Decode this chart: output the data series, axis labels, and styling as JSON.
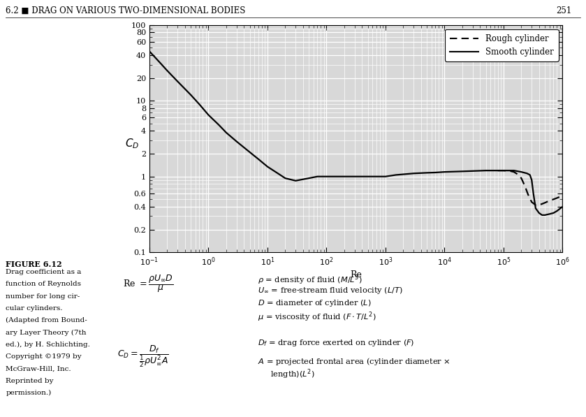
{
  "title_header": "6.2 ■ DRAG ON VARIOUS TWO-DIMENSIONAL BODIES",
  "page_number": "251",
  "ylabel": "$C_D$",
  "xlabel": "Re",
  "xlim": [
    0.1,
    1000000.0
  ],
  "ylim": [
    0.1,
    100
  ],
  "figure_label": "FIGURE 6.12",
  "figure_caption_lines": [
    "Drag coefficient as a",
    "function of Reynolds",
    "number for long cir-",
    "cular cylinders.",
    "(Adapted from Bound-",
    "ary Layer Theory (7th",
    "ed.), by H. Schlichting.",
    "Copyright ©1979 by",
    "McGraw-Hill, Inc.",
    "Reprinted by",
    "permission.)"
  ],
  "legend_rough": "Rough cylinder",
  "legend_smooth": "Smooth cylinder",
  "smooth_x": [
    0.1,
    0.15,
    0.2,
    0.3,
    0.5,
    0.7,
    1.0,
    1.5,
    2.0,
    3.0,
    5.0,
    7.0,
    10.0,
    15.0,
    20.0,
    30.0,
    50.0,
    70.0,
    100.0,
    150.0,
    200.0,
    300.0,
    500.0,
    700.0,
    1000.0,
    1500.0,
    2000.0,
    3000.0,
    5000.0,
    7000.0,
    10000.0,
    20000.0,
    50000.0,
    100000.0,
    150000.0,
    200000.0,
    250000.0,
    280000.0,
    300000.0,
    320000.0,
    350000.0,
    400000.0,
    450000.0,
    500000.0,
    600000.0,
    700000.0,
    800000.0,
    1000000.0
  ],
  "smooth_y": [
    45.0,
    32.0,
    25.0,
    18.0,
    12.0,
    9.0,
    6.5,
    4.8,
    3.8,
    2.9,
    2.1,
    1.7,
    1.35,
    1.1,
    0.95,
    0.88,
    0.95,
    1.0,
    1.0,
    1.0,
    1.0,
    1.0,
    1.0,
    1.0,
    1.0,
    1.05,
    1.07,
    1.1,
    1.12,
    1.13,
    1.15,
    1.17,
    1.2,
    1.2,
    1.2,
    1.15,
    1.1,
    1.05,
    0.9,
    0.6,
    0.38,
    0.33,
    0.31,
    0.31,
    0.32,
    0.33,
    0.35,
    0.4
  ],
  "rough_x": [
    80000.0,
    100000.0,
    130000.0,
    150000.0,
    180000.0,
    200000.0,
    230000.0,
    260000.0,
    300000.0,
    350000.0,
    400000.0,
    500000.0,
    600000.0,
    700000.0,
    800000.0,
    1000000.0
  ],
  "rough_y": [
    1.2,
    1.2,
    1.18,
    1.15,
    1.05,
    0.95,
    0.75,
    0.58,
    0.46,
    0.42,
    0.42,
    0.45,
    0.48,
    0.5,
    0.52,
    0.56
  ],
  "yticks": [
    100,
    80,
    60,
    40,
    20,
    10,
    8,
    6,
    4,
    2,
    1,
    0.6,
    0.4,
    0.2,
    0.1
  ],
  "ytick_labels": [
    "100",
    "80",
    "60",
    "40",
    "20",
    "10",
    "8",
    "6",
    "4",
    "2",
    "1",
    "0.6",
    "0.4",
    "0.2",
    "0.1"
  ],
  "xtick_labels": [
    "$10^{-1}$",
    "$10^0$",
    "$10^1$",
    "$10^2$",
    "$10^3$",
    "$10^4$",
    "$10^5$",
    "$10^6$"
  ]
}
